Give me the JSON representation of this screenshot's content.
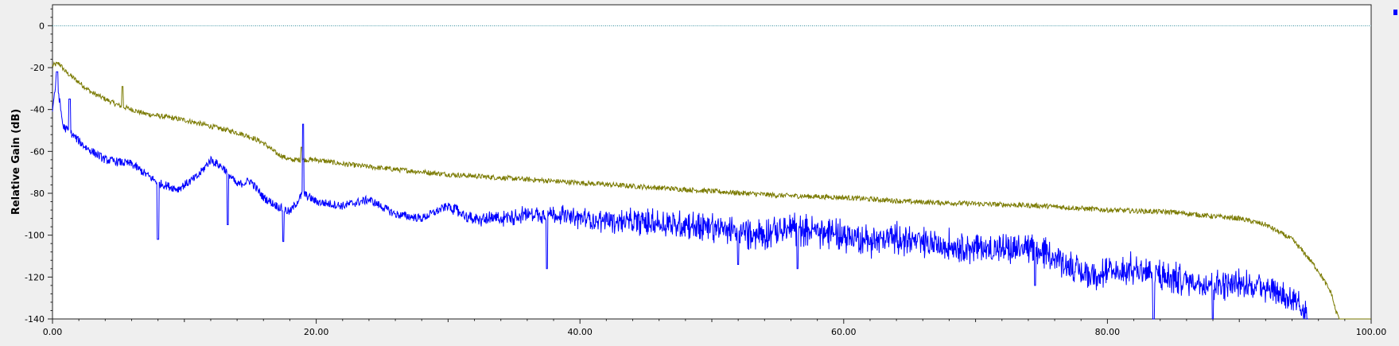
{
  "chart_data": {
    "type": "line",
    "title": "",
    "xlabel": "",
    "ylabel": "Relative Gain (dB)",
    "xlim": [
      0,
      100
    ],
    "ylim": [
      -140,
      10
    ],
    "x_ticks": [
      0,
      20,
      40,
      60,
      80,
      100
    ],
    "x_tick_labels": [
      "0.00",
      "20.00",
      "40.00",
      "60.00",
      "80.00",
      "100.00"
    ],
    "y_ticks": [
      0,
      -20,
      -40,
      -60,
      -80,
      -100,
      -120,
      -140
    ],
    "y_tick_labels": [
      "0",
      "-20",
      "-40",
      "-60",
      "-80",
      "-100",
      "-120",
      "-140"
    ],
    "reference_line": {
      "y": 0,
      "color": "#2a8a9a",
      "style": "dotted"
    },
    "grid": false,
    "legend": "none",
    "series": [
      {
        "color": "#7a7a00",
        "x": [
          0.0,
          0.5,
          1.0,
          2.0,
          3.0,
          5.0,
          7.0,
          10.0,
          12.0,
          14.0,
          15.0,
          16.0,
          17.0,
          18.0,
          20.0,
          22.0,
          25.0,
          30.0,
          35.0,
          40.0,
          45.0,
          50.0,
          55.0,
          60.0,
          65.0,
          70.0,
          75.0,
          80.0,
          85.0,
          88.0,
          90.0,
          92.0,
          94.0,
          95.0,
          96.0,
          97.0,
          97.3,
          97.6,
          100.0
        ],
        "y": [
          -19,
          -18,
          -22,
          -27,
          -32,
          -38,
          -42,
          -45,
          -48,
          -51,
          -53,
          -56,
          -61,
          -64,
          -64,
          -66,
          -68,
          -71,
          -73,
          -75,
          -77,
          -79,
          -81,
          -82,
          -84,
          -85,
          -86,
          -88,
          -89,
          -91,
          -92,
          -95,
          -102,
          -109,
          -117,
          -128,
          -136,
          -140,
          -140
        ],
        "noise": 1.2,
        "spikes": [
          [
            5.3,
            -29
          ],
          [
            18.9,
            -58
          ]
        ]
      },
      {
        "color": "#0000ff",
        "x": [
          0.0,
          0.3,
          0.8,
          1.5,
          2.5,
          4.0,
          6.0,
          8.0,
          9.5,
          11.0,
          12.0,
          13.0,
          14.0,
          15.0,
          16.0,
          17.0,
          18.0,
          19.0,
          20.0,
          22.0,
          24.0,
          26.0,
          28.0,
          30.0,
          32.0,
          34.0,
          36.0,
          38.0,
          40.0,
          42.0,
          45.0,
          48.0,
          50.0,
          52.0,
          54.0,
          56.0,
          58.0,
          60.0,
          62.0,
          64.0,
          66.0,
          68.0,
          70.0,
          72.0,
          74.0,
          76.0,
          78.0,
          80.0,
          82.0,
          84.0,
          86.0,
          88.0,
          90.0,
          92.0,
          94.0,
          95.2
        ],
        "y": [
          -40,
          -25,
          -48,
          -52,
          -58,
          -64,
          -66,
          -75,
          -78,
          -72,
          -64,
          -68,
          -76,
          -74,
          -82,
          -86,
          -89,
          -80,
          -84,
          -86,
          -83,
          -90,
          -92,
          -86,
          -93,
          -92,
          -90,
          -90,
          -92,
          -93,
          -94,
          -95,
          -96,
          -99,
          -99,
          -97,
          -98,
          -100,
          -103,
          -101,
          -104,
          -105,
          -106,
          -107,
          -107,
          -110,
          -118,
          -118,
          -116,
          -119,
          -122,
          -123,
          -124,
          -124,
          -131,
          -141
        ],
        "noise": 2.0,
        "dense_oscillation_from_x": 30,
        "spikes": [
          [
            0.35,
            -22
          ],
          [
            1.3,
            -35
          ],
          [
            19.0,
            -47
          ],
          [
            37.5,
            -88
          ]
        ],
        "dips": [
          [
            8.0,
            -102
          ],
          [
            13.3,
            -95
          ],
          [
            17.5,
            -103
          ],
          [
            37.5,
            -116
          ],
          [
            52.0,
            -114
          ],
          [
            56.5,
            -116
          ],
          [
            74.5,
            -124
          ],
          [
            83.5,
            -140
          ],
          [
            88.0,
            -140
          ]
        ]
      }
    ]
  },
  "legend_marker_color": "#0000ff"
}
